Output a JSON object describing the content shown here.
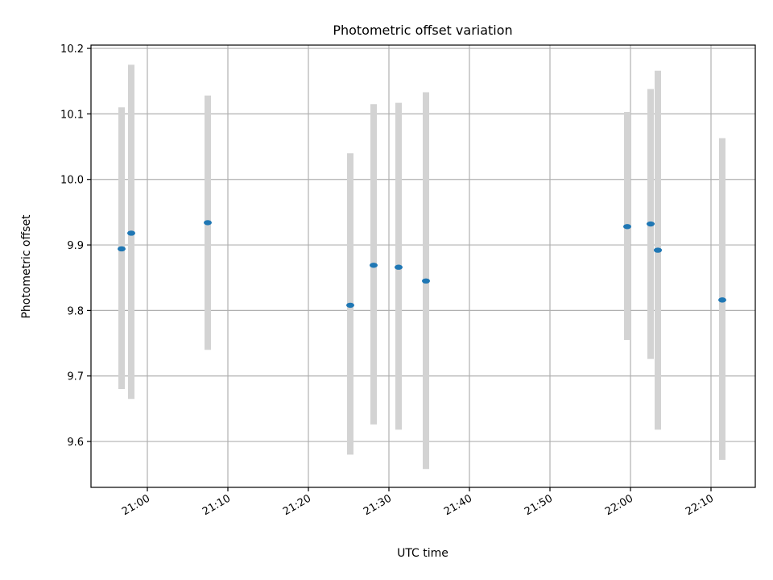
{
  "chart_data": {
    "type": "scatter",
    "title": "Photometric offset variation",
    "xlabel": "UTC time",
    "ylabel": "Photometric offset",
    "grid": true,
    "x_tick_labels": [
      "21:00",
      "21:10",
      "21:20",
      "21:30",
      "21:40",
      "21:50",
      "22:00",
      "22:10"
    ],
    "y_tick_labels": [
      "9.6",
      "9.7",
      "9.8",
      "9.9",
      "10.0",
      "10.1",
      "10.2"
    ],
    "xlim": [
      "20:53",
      "22:15.5"
    ],
    "ylim": [
      9.53,
      10.205
    ],
    "colors": {
      "point": "#1f77b4",
      "errorbar": "#d3d3d3"
    },
    "series": [
      {
        "points": [
          {
            "x": "20:56.8",
            "y": 9.894,
            "y_low": 9.68,
            "y_high": 10.11
          },
          {
            "x": "20:58.0",
            "y": 9.918,
            "y_low": 9.665,
            "y_high": 10.175
          },
          {
            "x": "21:07.5",
            "y": 9.934,
            "y_low": 9.74,
            "y_high": 10.128
          },
          {
            "x": "21:25.2",
            "y": 9.808,
            "y_low": 9.58,
            "y_high": 10.04
          },
          {
            "x": "21:28.1",
            "y": 9.869,
            "y_low": 9.626,
            "y_high": 10.115
          },
          {
            "x": "21:31.2",
            "y": 9.866,
            "y_low": 9.618,
            "y_high": 10.117
          },
          {
            "x": "21:34.6",
            "y": 9.845,
            "y_low": 9.558,
            "y_high": 10.133
          },
          {
            "x": "21:59.6",
            "y": 9.928,
            "y_low": 9.755,
            "y_high": 10.103
          },
          {
            "x": "22:02.5",
            "y": 9.932,
            "y_low": 9.726,
            "y_high": 10.138
          },
          {
            "x": "22:03.4",
            "y": 9.892,
            "y_low": 9.618,
            "y_high": 10.166
          },
          {
            "x": "22:11.4",
            "y": 9.816,
            "y_low": 9.572,
            "y_high": 10.063
          }
        ]
      }
    ]
  }
}
